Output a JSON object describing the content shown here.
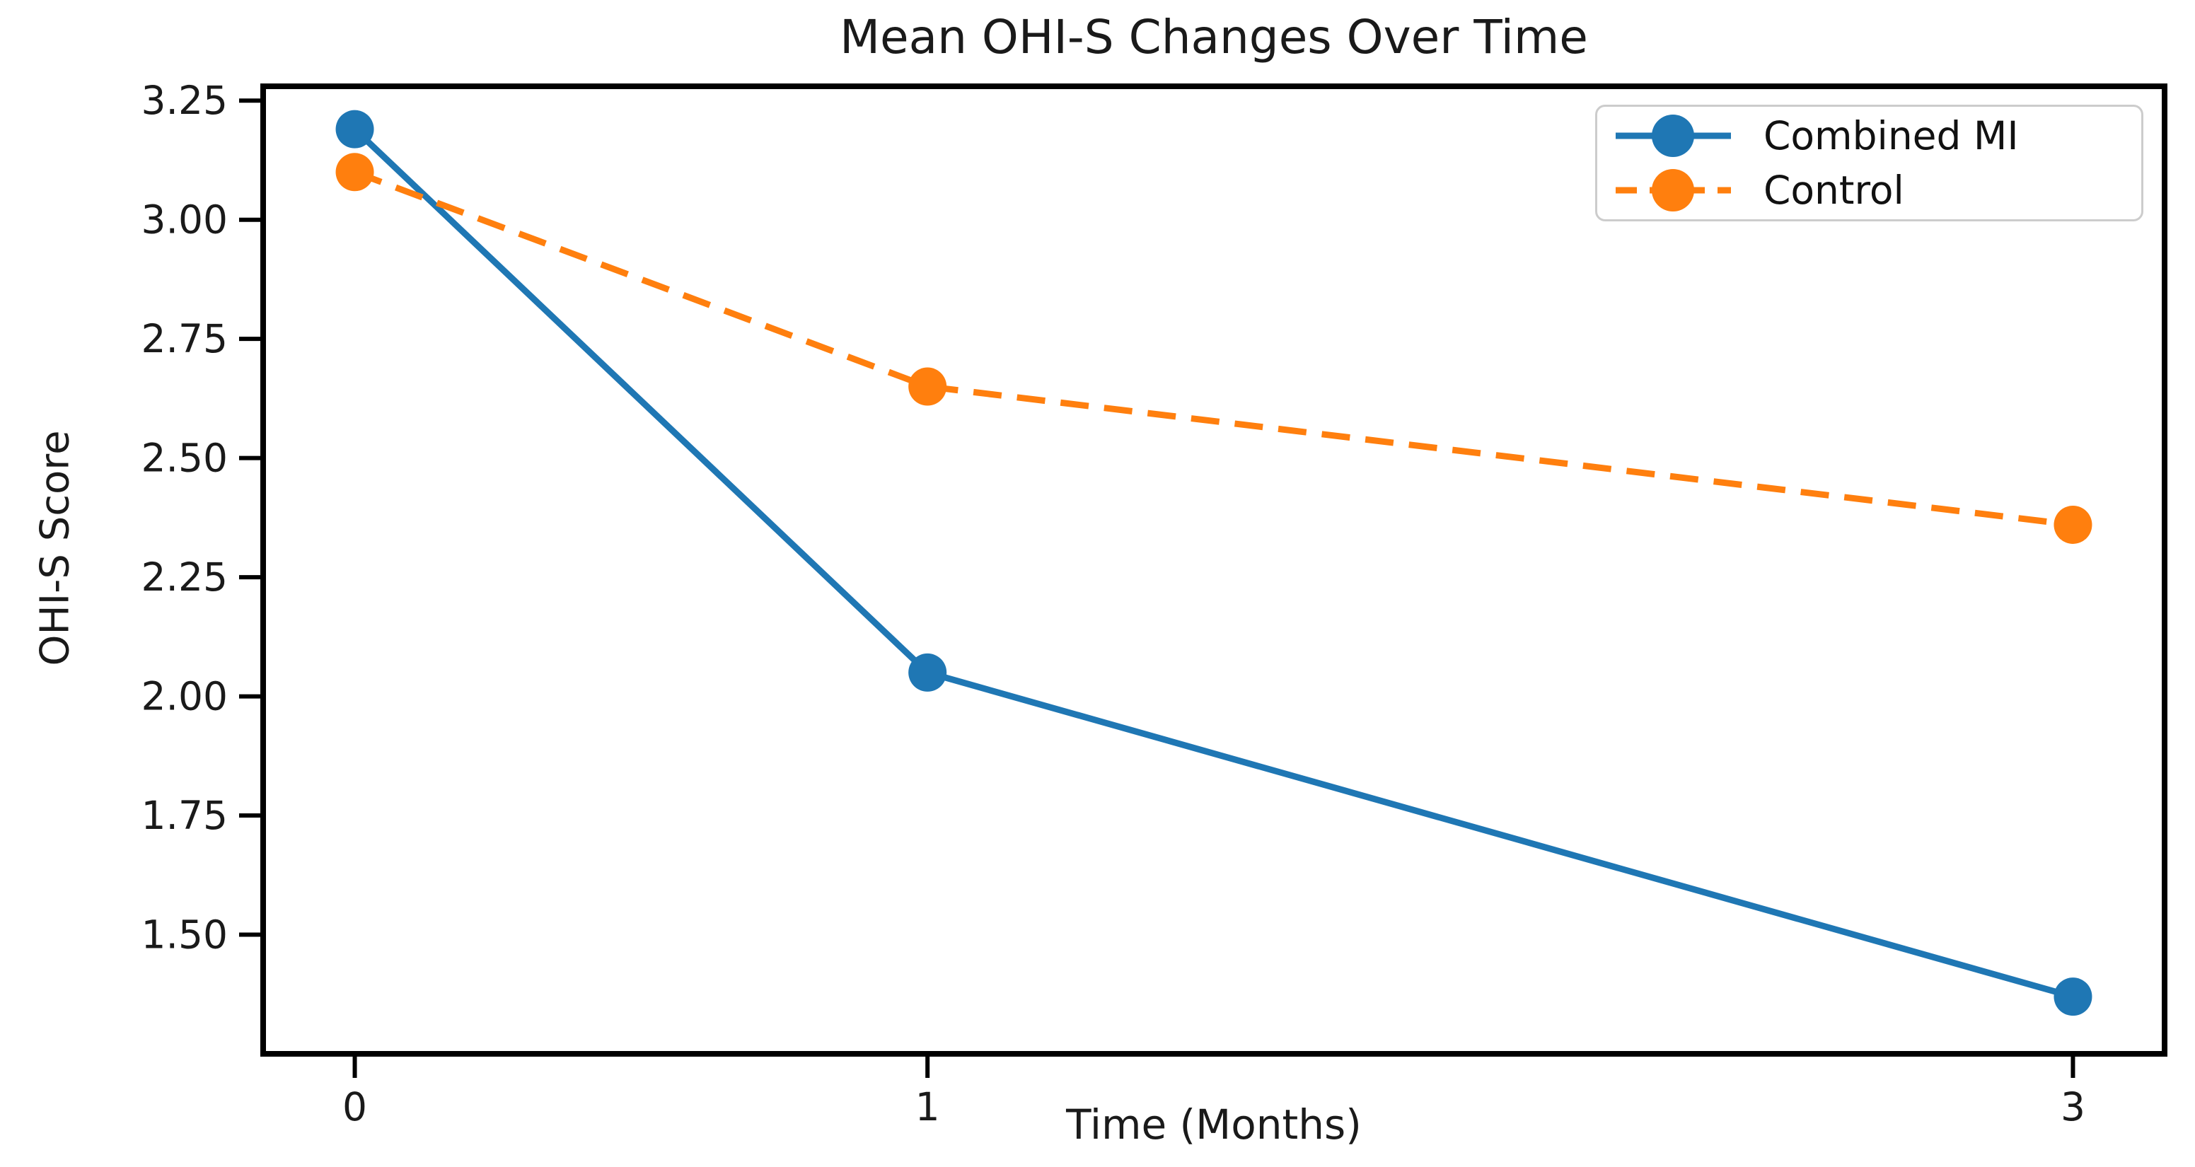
{
  "chart_data": {
    "type": "line",
    "title": "Mean OHI-S Changes Over Time",
    "xlabel": "Time (Months)",
    "ylabel": "OHI-S Score",
    "x": [
      0,
      1,
      3
    ],
    "x_tick_labels": [
      "0",
      "1",
      "3"
    ],
    "y_ticks": [
      3.25,
      3.0,
      2.75,
      2.5,
      2.25,
      2.0,
      1.75,
      1.5
    ],
    "y_tick_labels": [
      "3.25",
      "3.00",
      "2.75",
      "2.50",
      "2.25",
      "2.00",
      "1.75",
      "1.50"
    ],
    "xlim": [
      -0.16,
      3.16
    ],
    "ylim": [
      1.25,
      3.28
    ],
    "grid": false,
    "legend_position": "upper right",
    "axis_color": "#000000",
    "tick_label_color": "#1a1a1a",
    "series": [
      {
        "name": "Combined MI",
        "values": [
          3.19,
          2.05,
          1.37
        ],
        "color": "#1f77b4",
        "line_style": "solid",
        "marker": "circle"
      },
      {
        "name": "Control",
        "values": [
          3.1,
          2.65,
          2.36
        ],
        "color": "#ff7f0e",
        "line_style": "dashed",
        "marker": "circle"
      }
    ]
  }
}
